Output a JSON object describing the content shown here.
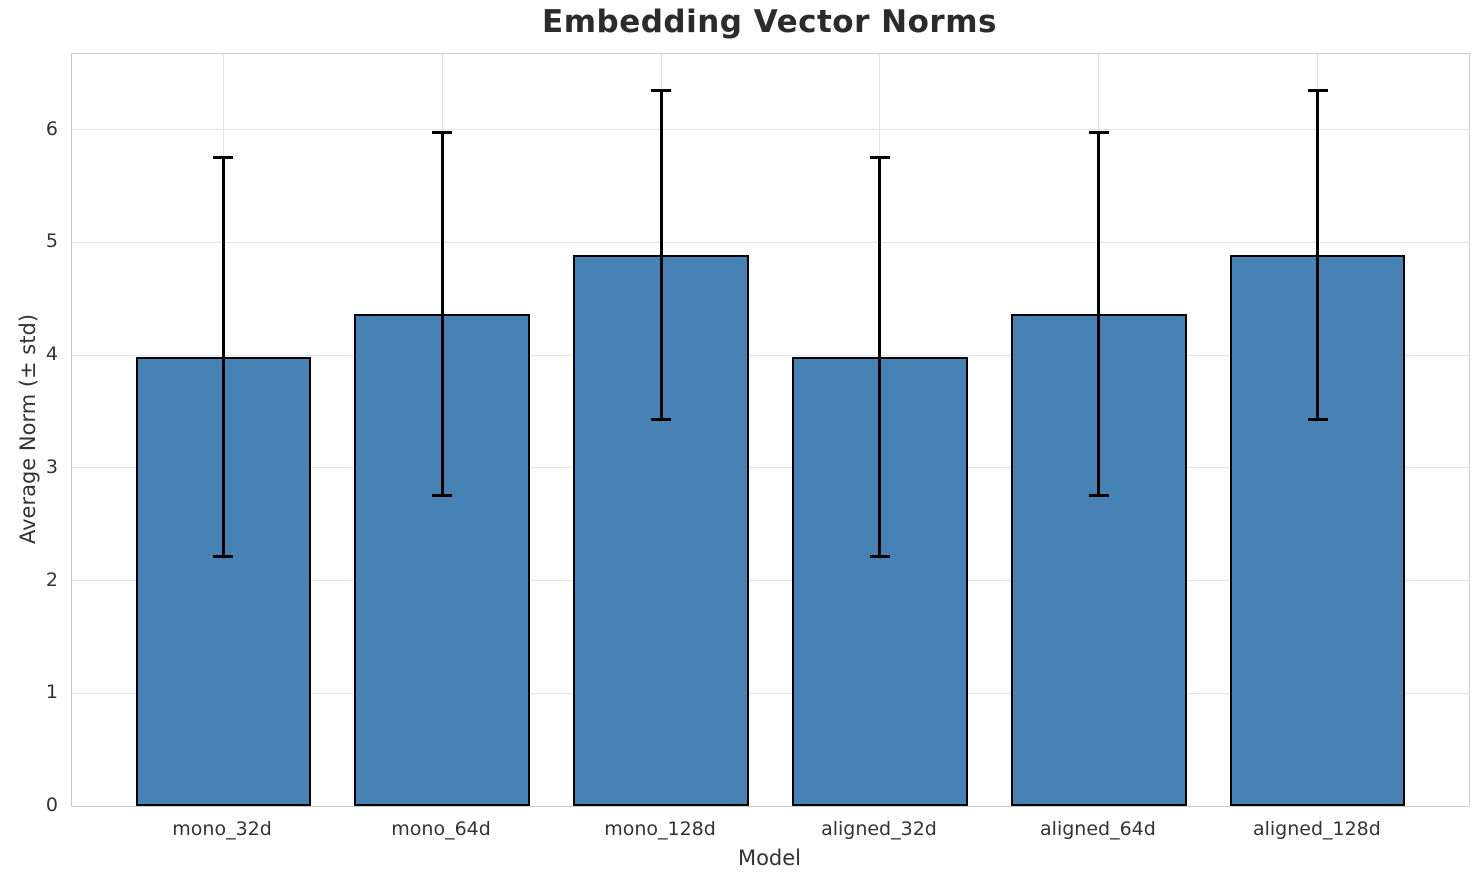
{
  "chart_data": {
    "type": "bar",
    "title": "Embedding Vector Norms",
    "xlabel": "Model",
    "ylabel": "Average Norm (± std)",
    "categories": [
      "mono_32d",
      "mono_64d",
      "mono_128d",
      "aligned_32d",
      "aligned_64d",
      "aligned_128d"
    ],
    "series": [
      {
        "name": "Average Norm",
        "values": [
          3.98,
          4.36,
          4.89,
          3.98,
          4.36,
          4.89
        ],
        "std": [
          1.77,
          1.61,
          1.46,
          1.77,
          1.61,
          1.46
        ]
      }
    ],
    "yticks": [
      0,
      1,
      2,
      3,
      4,
      5,
      6
    ],
    "ylim": [
      0,
      6.67
    ],
    "grid": true,
    "legend_position": "none",
    "colors": {
      "bar_fill": "#4682b4",
      "bar_edge": "#000000",
      "error_bar": "#000000",
      "grid_line": "#e4e4e4",
      "spine": "#cccccc",
      "title_text": "#2b2b2b",
      "label_text": "#333333"
    }
  }
}
